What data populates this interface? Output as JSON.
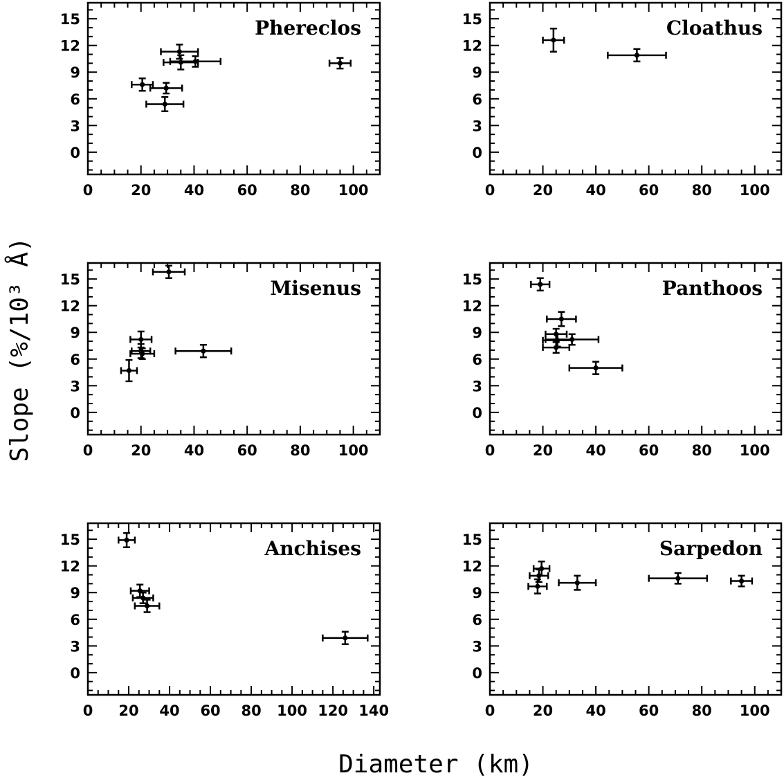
{
  "xlabel": "Diameter (km)",
  "ylabel": "Slope (%/10³ Å)",
  "chart_data": [
    {
      "type": "scatter",
      "title": "Phereclos",
      "xlim": [
        0,
        110
      ],
      "ylim": [
        -2.5,
        16.8
      ],
      "xticks": [
        0,
        20,
        40,
        60,
        80,
        100
      ],
      "yticks": [
        0,
        3,
        6,
        9,
        12,
        15
      ],
      "points": [
        {
          "x": 34.5,
          "y": 11.3,
          "xerr": 7.0,
          "yerr": 0.8
        },
        {
          "x": 35.0,
          "y": 10.1,
          "xerr": 6.5,
          "yerr": 0.8
        },
        {
          "x": 40.5,
          "y": 10.2,
          "xerr": 9.5,
          "yerr": 0.6
        },
        {
          "x": 95.0,
          "y": 10.0,
          "xerr": 4.0,
          "yerr": 0.6
        },
        {
          "x": 20.5,
          "y": 7.6,
          "xerr": 4.0,
          "yerr": 0.7
        },
        {
          "x": 29.5,
          "y": 7.2,
          "xerr": 6.0,
          "yerr": 0.6
        },
        {
          "x": 29.0,
          "y": 5.4,
          "xerr": 7.0,
          "yerr": 0.8
        }
      ]
    },
    {
      "type": "scatter",
      "title": "Cloathus",
      "xlim": [
        0,
        110
      ],
      "ylim": [
        -2.5,
        16.8
      ],
      "xticks": [
        0,
        20,
        40,
        60,
        80,
        100
      ],
      "yticks": [
        0,
        3,
        6,
        9,
        12,
        15
      ],
      "points": [
        {
          "x": 24.0,
          "y": 12.6,
          "xerr": 4.0,
          "yerr": 1.3
        },
        {
          "x": 55.5,
          "y": 10.9,
          "xerr": 11.0,
          "yerr": 0.7
        }
      ]
    },
    {
      "type": "scatter",
      "title": "Misenus",
      "xlim": [
        0,
        110
      ],
      "ylim": [
        -2.5,
        16.8
      ],
      "xticks": [
        0,
        20,
        40,
        60,
        80,
        100
      ],
      "yticks": [
        0,
        3,
        6,
        9,
        12,
        15
      ],
      "points": [
        {
          "x": 30.5,
          "y": 15.8,
          "xerr": 6.0,
          "yerr": 0.7
        },
        {
          "x": 20.0,
          "y": 8.2,
          "xerr": 4.0,
          "yerr": 0.9
        },
        {
          "x": 20.0,
          "y": 6.9,
          "xerr": 3.5,
          "yerr": 0.8
        },
        {
          "x": 20.5,
          "y": 6.6,
          "xerr": 4.5,
          "yerr": 0.6
        },
        {
          "x": 43.5,
          "y": 6.9,
          "xerr": 10.5,
          "yerr": 0.7
        },
        {
          "x": 15.5,
          "y": 4.7,
          "xerr": 3.0,
          "yerr": 1.2
        }
      ]
    },
    {
      "type": "scatter",
      "title": "Panthoos",
      "xlim": [
        0,
        110
      ],
      "ylim": [
        -2.5,
        16.8
      ],
      "xticks": [
        0,
        20,
        40,
        60,
        80,
        100
      ],
      "yticks": [
        0,
        3,
        6,
        9,
        12,
        15
      ],
      "points": [
        {
          "x": 19.0,
          "y": 14.4,
          "xerr": 3.5,
          "yerr": 0.7
        },
        {
          "x": 27.0,
          "y": 10.5,
          "xerr": 5.5,
          "yerr": 0.8
        },
        {
          "x": 25.0,
          "y": 8.8,
          "xerr": 4.0,
          "yerr": 0.6
        },
        {
          "x": 25.5,
          "y": 8.1,
          "xerr": 5.5,
          "yerr": 0.7
        },
        {
          "x": 31.0,
          "y": 8.2,
          "xerr": 10.0,
          "yerr": 0.6
        },
        {
          "x": 25.0,
          "y": 7.3,
          "xerr": 5.0,
          "yerr": 0.6
        },
        {
          "x": 40.0,
          "y": 5.0,
          "xerr": 10.0,
          "yerr": 0.7
        }
      ]
    },
    {
      "type": "scatter",
      "title": "Anchises",
      "xlim": [
        0,
        143
      ],
      "ylim": [
        -2.5,
        16.8
      ],
      "xticks": [
        0,
        20,
        40,
        60,
        80,
        100,
        120,
        140
      ],
      "yticks": [
        0,
        3,
        6,
        9,
        12,
        15
      ],
      "points": [
        {
          "x": 19.0,
          "y": 14.9,
          "xerr": 4.0,
          "yerr": 0.8
        },
        {
          "x": 25.5,
          "y": 9.2,
          "xerr": 4.5,
          "yerr": 0.7
        },
        {
          "x": 27.0,
          "y": 8.4,
          "xerr": 5.0,
          "yerr": 0.6
        },
        {
          "x": 29.0,
          "y": 7.5,
          "xerr": 6.0,
          "yerr": 0.7
        },
        {
          "x": 126.0,
          "y": 3.9,
          "xerr": 11.0,
          "yerr": 0.7
        }
      ]
    },
    {
      "type": "scatter",
      "title": "Sarpedon",
      "xlim": [
        0,
        110
      ],
      "ylim": [
        -2.5,
        16.8
      ],
      "xticks": [
        0,
        20,
        40,
        60,
        80,
        100
      ],
      "yticks": [
        0,
        3,
        6,
        9,
        12,
        15
      ],
      "points": [
        {
          "x": 19.5,
          "y": 11.7,
          "xerr": 3.0,
          "yerr": 0.8
        },
        {
          "x": 18.5,
          "y": 10.9,
          "xerr": 3.5,
          "yerr": 0.7
        },
        {
          "x": 18.0,
          "y": 9.7,
          "xerr": 3.5,
          "yerr": 0.8
        },
        {
          "x": 33.0,
          "y": 10.1,
          "xerr": 7.0,
          "yerr": 0.8
        },
        {
          "x": 71.0,
          "y": 10.6,
          "xerr": 11.0,
          "yerr": 0.6
        },
        {
          "x": 95.0,
          "y": 10.3,
          "xerr": 4.0,
          "yerr": 0.6
        }
      ]
    }
  ]
}
